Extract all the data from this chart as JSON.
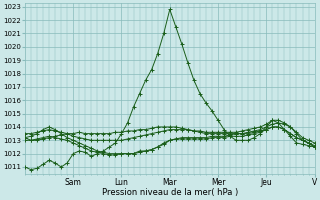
{
  "background_color": "#cce8e8",
  "grid_color": "#88bbbb",
  "line_color": "#1a5e1a",
  "marker_color": "#1a5e1a",
  "xlabel": "Pression niveau de la mer( hPa )",
  "ylim_min": 1011,
  "ylim_max": 1023,
  "yticks": [
    1011,
    1012,
    1013,
    1014,
    1015,
    1016,
    1017,
    1018,
    1019,
    1020,
    1021,
    1022,
    1023
  ],
  "x_day_labels": [
    "Sam",
    "Lun",
    "Mar",
    "Mer",
    "Jeu",
    "V"
  ],
  "n_points": 49,
  "day_tick_positions": [
    8,
    16,
    24,
    32,
    40,
    48
  ],
  "series": [
    [
      1011.0,
      1010.8,
      1010.9,
      1011.2,
      1011.5,
      1011.3,
      1011.0,
      1011.3,
      1012.0,
      1012.2,
      1012.1,
      1011.8,
      1012.0,
      1012.2,
      1012.5,
      1012.8,
      1013.5,
      1014.3,
      1015.5,
      1016.5,
      1017.5,
      1018.3,
      1019.5,
      1021.0,
      1022.8,
      1021.5,
      1020.2,
      1018.8,
      1017.5,
      1016.5,
      1015.8,
      1015.2,
      1014.5,
      1013.8,
      1013.3,
      1013.0,
      1013.0,
      1013.0,
      1013.2,
      1013.5,
      1014.0,
      1014.5,
      1014.3,
      1013.8,
      1013.3,
      1012.8,
      1012.7,
      1012.6,
      1012.5
    ],
    [
      1013.2,
      1013.0,
      1013.0,
      1013.1,
      1013.2,
      1013.3,
      1013.4,
      1013.5,
      1013.5,
      1013.6,
      1013.5,
      1013.5,
      1013.5,
      1013.5,
      1013.5,
      1013.6,
      1013.6,
      1013.7,
      1013.7,
      1013.8,
      1013.8,
      1013.9,
      1014.0,
      1014.0,
      1014.0,
      1014.0,
      1013.9,
      1013.8,
      1013.7,
      1013.6,
      1013.5,
      1013.5,
      1013.5,
      1013.5,
      1013.5,
      1013.5,
      1013.5,
      1013.6,
      1013.7,
      1013.8,
      1014.0,
      1014.2,
      1014.3,
      1014.2,
      1014.0,
      1013.5,
      1013.0,
      1012.8,
      1012.6
    ],
    [
      1013.2,
      1013.3,
      1013.5,
      1013.8,
      1014.0,
      1013.8,
      1013.5,
      1013.2,
      1013.0,
      1012.8,
      1012.6,
      1012.4,
      1012.2,
      1012.1,
      1012.0,
      1012.0,
      1012.0,
      1012.0,
      1012.0,
      1012.2,
      1012.2,
      1012.3,
      1012.5,
      1012.8,
      1013.0,
      1013.1,
      1013.2,
      1013.2,
      1013.2,
      1013.2,
      1013.2,
      1013.3,
      1013.3,
      1013.3,
      1013.4,
      1013.5,
      1013.5,
      1013.5,
      1013.6,
      1013.7,
      1013.8,
      1014.0,
      1014.0,
      1013.8,
      1013.5,
      1013.2,
      1013.0,
      1012.8,
      1012.5
    ],
    [
      1013.5,
      1013.5,
      1013.6,
      1013.7,
      1013.8,
      1013.7,
      1013.6,
      1013.5,
      1013.3,
      1013.2,
      1013.1,
      1013.0,
      1013.0,
      1013.0,
      1013.0,
      1013.0,
      1013.0,
      1013.1,
      1013.2,
      1013.3,
      1013.4,
      1013.5,
      1013.6,
      1013.7,
      1013.8,
      1013.8,
      1013.8,
      1013.8,
      1013.7,
      1013.7,
      1013.6,
      1013.6,
      1013.6,
      1013.6,
      1013.6,
      1013.6,
      1013.7,
      1013.8,
      1013.9,
      1014.0,
      1014.2,
      1014.5,
      1014.5,
      1014.3,
      1014.0,
      1013.6,
      1013.2,
      1013.0,
      1012.8
    ],
    [
      1013.0,
      1013.0,
      1013.1,
      1013.2,
      1013.3,
      1013.2,
      1013.1,
      1013.0,
      1012.8,
      1012.6,
      1012.4,
      1012.2,
      1012.1,
      1012.0,
      1011.9,
      1011.9,
      1012.0,
      1012.0,
      1012.0,
      1012.1,
      1012.2,
      1012.3,
      1012.5,
      1012.7,
      1013.0,
      1013.1,
      1013.1,
      1013.1,
      1013.1,
      1013.1,
      1013.1,
      1013.2,
      1013.2,
      1013.2,
      1013.3,
      1013.3,
      1013.3,
      1013.4,
      1013.5,
      1013.6,
      1013.8,
      1014.0,
      1014.0,
      1013.8,
      1013.5,
      1013.2,
      1013.0,
      1012.8,
      1012.5
    ]
  ]
}
